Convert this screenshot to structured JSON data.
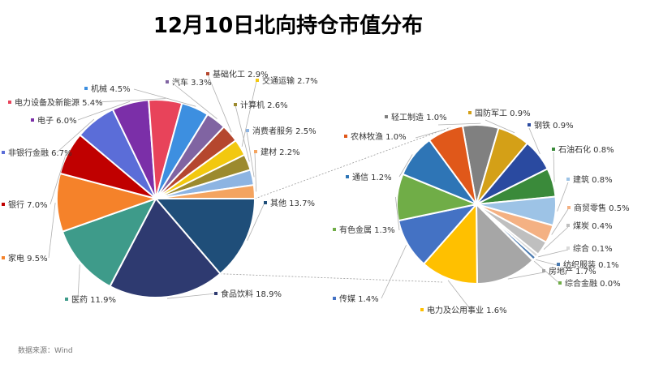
{
  "chart_data": {
    "type": "pie-of-pie",
    "title": "12月10日北向持仓市值分布",
    "source": "数据来源：Wind",
    "main_pie": [
      {
        "name": "其他",
        "label": "其他 13.7%",
        "value": 13.7,
        "color": "#1f4e79"
      },
      {
        "name": "食品饮料",
        "label": "食品饮料 18.9%",
        "value": 18.9,
        "color": "#2e3a70"
      },
      {
        "name": "医药",
        "label": "医药 11.9%",
        "value": 11.9,
        "color": "#3e9b8a"
      },
      {
        "name": "家电",
        "label": "家电 9.5%",
        "value": 9.5,
        "color": "#f5822a"
      },
      {
        "name": "银行",
        "label": "银行 7.0%",
        "value": 7.0,
        "color": "#c00000"
      },
      {
        "name": "非银行金融",
        "label": "非银行金融 6.7%",
        "value": 6.7,
        "color": "#5b6dd8"
      },
      {
        "name": "电子",
        "label": "电子 6.0%",
        "value": 6.0,
        "color": "#7b2fa8"
      },
      {
        "name": "电力设备及新能源",
        "label": "电力设备及新能源 5.4%",
        "value": 5.4,
        "color": "#e8435a"
      },
      {
        "name": "机械",
        "label": "机械 4.5%",
        "value": 4.5,
        "color": "#3d8fe0"
      },
      {
        "name": "汽车",
        "label": "汽车 3.3%",
        "value": 3.3,
        "color": "#8064a2"
      },
      {
        "name": "基础化工",
        "label": "基础化工 2.9%",
        "value": 2.9,
        "color": "#b5472e"
      },
      {
        "name": "交通运输",
        "label": "交通运输 2.7%",
        "value": 2.7,
        "color": "#f2c80f"
      },
      {
        "name": "计算机",
        "label": "计算机 2.6%",
        "value": 2.6,
        "color": "#9c8a2e"
      },
      {
        "name": "消费者服务",
        "label": "消费者服务 2.5%",
        "value": 2.5,
        "color": "#8db4e2"
      },
      {
        "name": "建材",
        "label": "建材 2.2%",
        "value": 2.2,
        "color": "#f4a460"
      }
    ],
    "secondary_pie": [
      {
        "name": "轻工制造",
        "label": "轻工制造 1.0%",
        "value": 1.0,
        "color": "#808080"
      },
      {
        "name": "国防军工",
        "label": "国防军工 0.9%",
        "value": 0.9,
        "color": "#d4a017"
      },
      {
        "name": "钢铁",
        "label": "钢铁 0.9%",
        "value": 0.9,
        "color": "#2a4aa0"
      },
      {
        "name": "石油石化",
        "label": "石油石化 0.8%",
        "value": 0.8,
        "color": "#3a8a3a"
      },
      {
        "name": "建筑",
        "label": "建筑 0.8%",
        "value": 0.8,
        "color": "#9dc3e6"
      },
      {
        "name": "商贸零售",
        "label": "商贸零售 0.5%",
        "value": 0.5,
        "color": "#f4b183"
      },
      {
        "name": "煤炭",
        "label": "煤炭 0.4%",
        "value": 0.4,
        "color": "#bfbfbf"
      },
      {
        "name": "综合",
        "label": "综合 0.1%",
        "value": 0.1,
        "color": "#d9d9d9"
      },
      {
        "name": "纺织服装",
        "label": "纺织服装 0.1%",
        "value": 0.1,
        "color": "#4a7ab0"
      },
      {
        "name": "综合金融",
        "label": "综合金融 0.0%",
        "value": 0.02,
        "color": "#70ad47"
      },
      {
        "name": "房地产",
        "label": "房地产 1.7%",
        "value": 1.7,
        "color": "#a6a6a6"
      },
      {
        "name": "电力及公用事业",
        "label": "电力及公用事业 1.6%",
        "value": 1.6,
        "color": "#ffc000"
      },
      {
        "name": "传媒",
        "label": "传媒 1.4%",
        "value": 1.4,
        "color": "#4472c4"
      },
      {
        "name": "有色金属",
        "label": "有色金属 1.3%",
        "value": 1.3,
        "color": "#70ad47"
      },
      {
        "name": "通信",
        "label": "通信 1.2%",
        "value": 1.2,
        "color": "#2e75b6"
      },
      {
        "name": "农林牧渔",
        "label": "农林牧渔 1.0%",
        "value": 1.0,
        "color": "#e0581a"
      }
    ]
  }
}
